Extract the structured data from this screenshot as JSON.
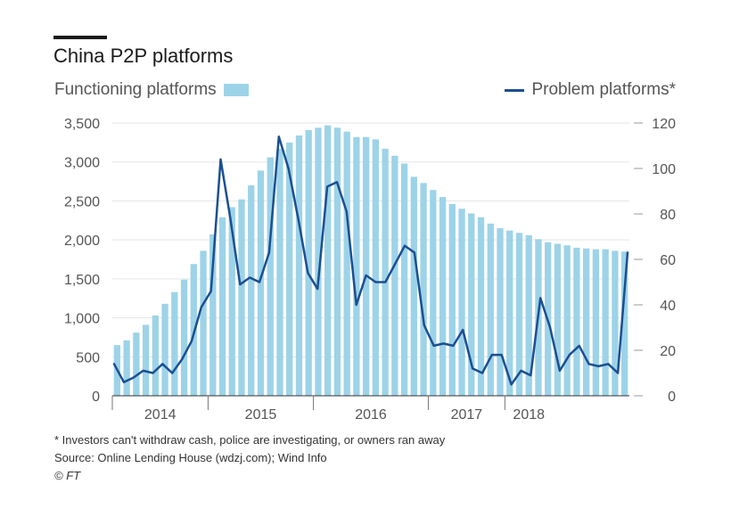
{
  "chart_data": {
    "type": "bar+line",
    "title": "China P2P platforms",
    "legend": {
      "bars_label": "Functioning platforms",
      "line_label": "Problem platforms*"
    },
    "colors": {
      "bars": "#9dd3e8",
      "line": "#1b4f91",
      "text": "#333333",
      "grid": "#e5e5e5"
    },
    "left_axis": {
      "ticks": [
        "0",
        "500",
        "1,000",
        "1,500",
        "2,000",
        "2,500",
        "3,000",
        "3,500"
      ],
      "range": [
        0,
        3500
      ]
    },
    "right_axis": {
      "ticks": [
        "0",
        "20",
        "40",
        "60",
        "80",
        "100",
        "120"
      ],
      "range": [
        0,
        120
      ]
    },
    "years": [
      {
        "label": "2014",
        "from": 0,
        "to": 10
      },
      {
        "label": "2015",
        "from": 10,
        "to": 21
      },
      {
        "label": "2016",
        "from": 21,
        "to": 33
      },
      {
        "label": "2017",
        "from": 33,
        "to": 41
      },
      {
        "label": "2018",
        "from": 41,
        "to": 46
      }
    ],
    "functioning_platforms": [
      650,
      710,
      810,
      910,
      1030,
      1180,
      1330,
      1490,
      1690,
      1860,
      2070,
      2290,
      2420,
      2520,
      2700,
      2890,
      3060,
      3170,
      3250,
      3340,
      3410,
      3440,
      3470,
      3440,
      3390,
      3320,
      3320,
      3290,
      3170,
      3080,
      2980,
      2810,
      2730,
      2640,
      2550,
      2460,
      2400,
      2340,
      2290,
      2210,
      2150,
      2120,
      2090,
      2060,
      2010,
      1970,
      1950,
      1930,
      1900,
      1890,
      1880,
      1880,
      1860,
      1850
    ],
    "problem_platforms": [
      14,
      6,
      8,
      11,
      10,
      14,
      10,
      16,
      24,
      39,
      46,
      104,
      78,
      49,
      52,
      50,
      63,
      114,
      100,
      78,
      54,
      47,
      92,
      94,
      81,
      40,
      53,
      50,
      50,
      58,
      66,
      63,
      31,
      22,
      23,
      22,
      29,
      12,
      10,
      18,
      18,
      5,
      11,
      9,
      43,
      30,
      11,
      18,
      22,
      14,
      13,
      14,
      10,
      63
    ]
  },
  "footnotes": {
    "note": "* Investors can't withdraw cash, police are investigating, or owners ran away",
    "source": "Source: Online Lending House (wdzj.com); Wind Info",
    "copyright": "© FT"
  }
}
